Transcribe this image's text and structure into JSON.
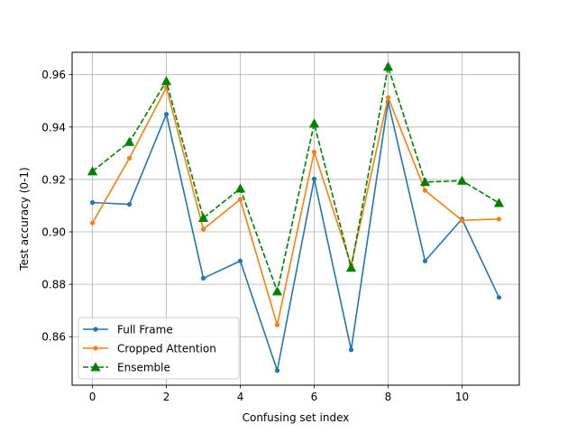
{
  "chart_data": {
    "type": "line",
    "title": "",
    "xlabel": "Confusing set index",
    "ylabel": "Test accuracy (0-1)",
    "x": [
      0,
      1,
      2,
      3,
      4,
      5,
      6,
      7,
      8,
      9,
      10,
      11
    ],
    "xlim": [
      -0.55,
      11.55
    ],
    "ylim": [
      0.8415,
      0.9685
    ],
    "xticks": [
      0,
      2,
      4,
      6,
      8,
      10
    ],
    "yticks": [
      0.86,
      0.88,
      0.9,
      0.92,
      0.94,
      0.96
    ],
    "xtick_labels": [
      "0",
      "2",
      "4",
      "6",
      "8",
      "10"
    ],
    "ytick_labels": [
      "0.86",
      "0.88",
      "0.90",
      "0.92",
      "0.94",
      "0.96"
    ],
    "grid": true,
    "legend_position": "lower left",
    "series": [
      {
        "name": "Full Frame",
        "color": "#1f77b4",
        "line_style": "solid",
        "marker": "dot",
        "values": [
          0.9112,
          0.9105,
          0.9449,
          0.8823,
          0.8889,
          0.8471,
          0.9202,
          0.855,
          0.9497,
          0.8889,
          0.9049,
          0.875
        ]
      },
      {
        "name": "Cropped Attention",
        "color": "#ff7f0e",
        "line_style": "solid",
        "marker": "dot",
        "values": [
          0.9034,
          0.9281,
          0.9551,
          0.901,
          0.9124,
          0.8645,
          0.9305,
          0.8873,
          0.9513,
          0.9158,
          0.9044,
          0.9049
        ]
      },
      {
        "name": "Ensemble",
        "color": "#008000",
        "line_style": "dashed",
        "marker": "triangle",
        "values": [
          0.9231,
          0.9343,
          0.9575,
          0.9053,
          0.9165,
          0.8773,
          0.9413,
          0.8863,
          0.963,
          0.919,
          0.9195,
          0.911
        ]
      }
    ]
  }
}
